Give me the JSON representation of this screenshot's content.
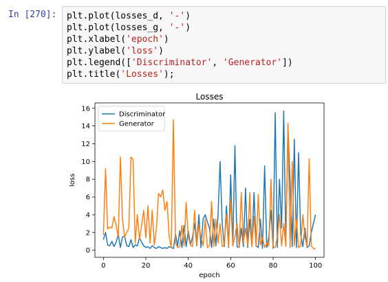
{
  "cell": {
    "prompt": "In [270]:",
    "code_lines": [
      {
        "pre": "plt.plot(losses_d, ",
        "str": "'-'",
        "post": ")"
      },
      {
        "pre": "plt.plot(losses_g, ",
        "str": "'-'",
        "post": ")"
      },
      {
        "pre": "plt.xlabel(",
        "str": "'epoch'",
        "post": ")"
      },
      {
        "pre": "plt.ylabel(",
        "str": "'loss'",
        "post": ")"
      },
      {
        "pre": "plt.legend([",
        "str": "'Discriminator'",
        "mid": ", ",
        "str2": "'Generator'",
        "post": "])"
      },
      {
        "pre": "plt.title(",
        "str": "'Losses'",
        "post": ");"
      }
    ]
  },
  "chart_data": {
    "type": "line",
    "title": "Losses",
    "xlabel": "epoch",
    "ylabel": "loss",
    "xlim": [
      -4,
      104
    ],
    "ylim": [
      -0.8,
      16.6
    ],
    "xticks": [
      0,
      20,
      40,
      60,
      80,
      100
    ],
    "yticks": [
      0,
      2,
      4,
      6,
      8,
      10,
      12,
      14,
      16
    ],
    "legend_position": "top-left",
    "series": [
      {
        "name": "Discriminator",
        "color": "#1f77b4",
        "values": [
          1.2,
          2.0,
          0.6,
          0.5,
          1.0,
          0.4,
          0.9,
          1.8,
          0.3,
          1.5,
          1.6,
          0.5,
          0.4,
          1.2,
          0.3,
          0.6,
          0.5,
          1.4,
          0.9,
          0.5,
          0.3,
          0.4,
          0.2,
          0.5,
          0.3,
          0.2,
          0.4,
          0.3,
          0.2,
          0.3,
          0.2,
          0.4,
          0.3,
          0.2,
          1.8,
          0.5,
          2.2,
          0.3,
          2.8,
          0.4,
          2.2,
          0.6,
          1.5,
          3.0,
          0.5,
          4.0,
          0.3,
          3.5,
          4.0,
          3.2,
          2.5,
          0.3,
          3.5,
          0.5,
          3.8,
          10.0,
          3.0,
          0.4,
          5.0,
          0.3,
          8.5,
          0.5,
          11.8,
          0.4,
          0.3,
          2.5,
          0.4,
          7.0,
          0.3,
          3.5,
          0.4,
          6.5,
          0.5,
          0.3,
          3.5,
          0.2,
          9.5,
          0.3,
          1.5,
          4.5,
          0.2,
          15.5,
          0.3,
          8.0,
          2.5,
          15.7,
          0.5,
          14.0,
          7.5,
          0.4,
          12.5,
          0.3,
          11.0,
          1.8,
          0.4,
          2.5,
          0.3,
          0.5,
          2.0,
          3.0,
          4.0
        ]
      },
      {
        "name": "Generator",
        "color": "#ff7f0e",
        "values": [
          1.7,
          9.2,
          2.4,
          2.6,
          2.5,
          3.8,
          2.8,
          1.5,
          10.5,
          3.5,
          1.5,
          2.0,
          2.5,
          10.5,
          10.2,
          0.8,
          4.0,
          1.2,
          2.8,
          4.5,
          1.4,
          5.0,
          0.8,
          4.5,
          0.6,
          2.5,
          6.4,
          6.0,
          6.8,
          4.5,
          5.5,
          1.5,
          0.3,
          14.7,
          0.8,
          0.3,
          0.4,
          2.8,
          0.5,
          5.4,
          1.5,
          0.6,
          0.4,
          4.5,
          0.6,
          2.8,
          1.5,
          0.5,
          3.5,
          0.3,
          0.5,
          5.5,
          0.4,
          3.5,
          0.8,
          3.0,
          0.4,
          0.6,
          4.0,
          0.4,
          5.8,
          0.5,
          1.5,
          3.0,
          0.3,
          6.5,
          0.8,
          2.5,
          0.5,
          6.5,
          0.4,
          3.8,
          0.4,
          6.3,
          0.6,
          1.5,
          0.3,
          0.8,
          0.5,
          8.0,
          0.4,
          0.3,
          1.5,
          4.0,
          0.5,
          3.0,
          0.4,
          14.3,
          0.3,
          10.0,
          0.5,
          3.5,
          0.3,
          0.5,
          4.0,
          1.5,
          0.4,
          10.3,
          0.5,
          0.2,
          0.1
        ]
      }
    ]
  }
}
